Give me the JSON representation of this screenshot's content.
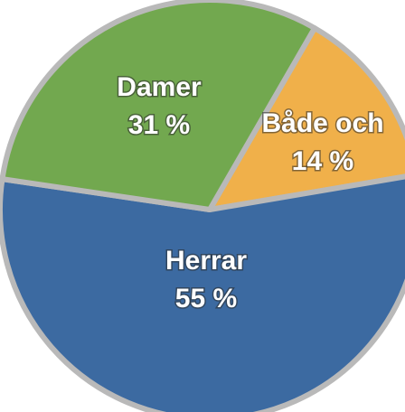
{
  "chart_data": {
    "type": "pie",
    "categories": [
      "Både och",
      "Herrar",
      "Damer"
    ],
    "values": [
      14,
      55,
      31
    ],
    "value_labels": [
      "14 %",
      "55 %",
      "31 %"
    ],
    "colors": [
      "#f0b04a",
      "#3c6aa1",
      "#72a84f"
    ]
  }
}
